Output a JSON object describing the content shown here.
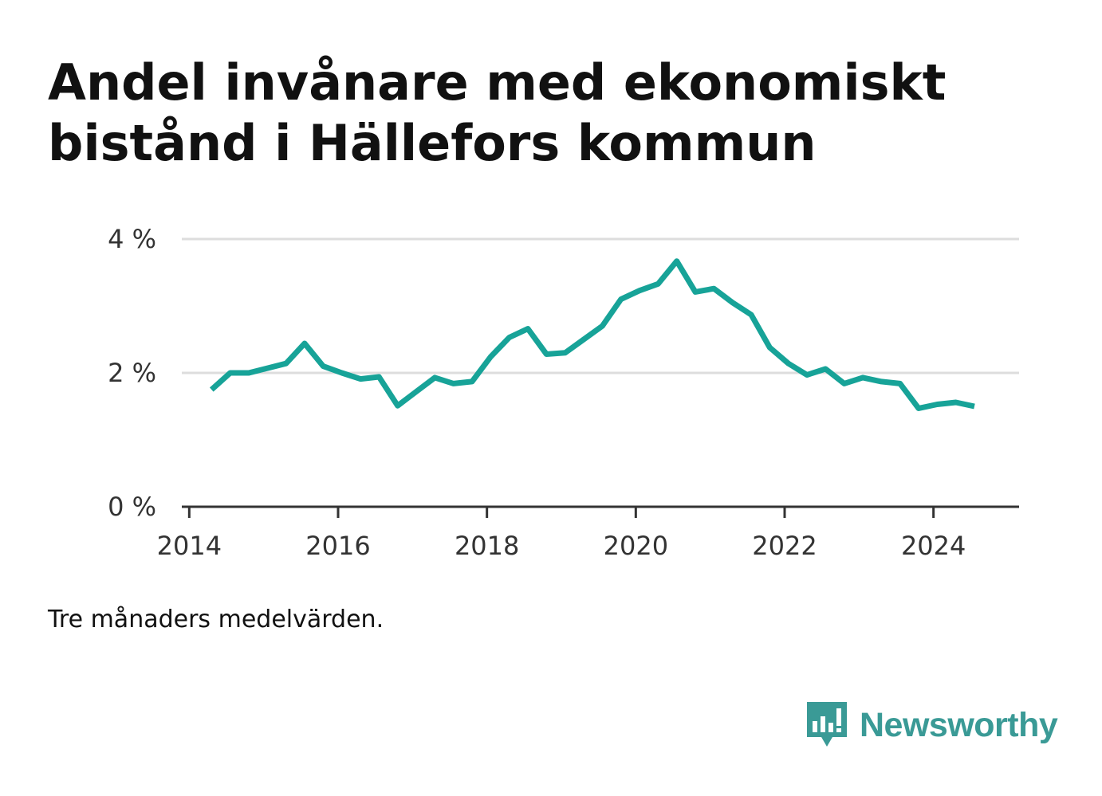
{
  "title": "Andel invånare med ekonomiskt bistånd i Hällefors kommun",
  "note": "Tre månaders medelvärden.",
  "brand": {
    "name": "Newsworthy",
    "icon": "bar-chart-speech-bubble-icon",
    "color": "#3a9a96"
  },
  "chart_data": {
    "type": "line",
    "title": "Andel invånare med ekonomiskt bistånd i Hällefors kommun",
    "xlabel": "",
    "ylabel": "",
    "xlim": [
      2013.9,
      2025.15
    ],
    "ylim": [
      0,
      4
    ],
    "grid": true,
    "legend": "none",
    "x_ticks": [
      {
        "value": 2014,
        "label": "2014"
      },
      {
        "value": 2016,
        "label": "2016"
      },
      {
        "value": 2018,
        "label": "2018"
      },
      {
        "value": 2020,
        "label": "2020"
      },
      {
        "value": 2022,
        "label": "2022"
      },
      {
        "value": 2024,
        "label": "2024"
      }
    ],
    "y_ticks": [
      {
        "value": 0,
        "label": "0 %"
      },
      {
        "value": 2,
        "label": "2 %"
      },
      {
        "value": 4,
        "label": "4 %"
      }
    ],
    "series": [
      {
        "color": "#17a398",
        "x": [
          2014.3,
          2014.55,
          2014.8,
          2015.05,
          2015.3,
          2015.55,
          2015.8,
          2016.05,
          2016.3,
          2016.55,
          2016.8,
          2017.05,
          2017.3,
          2017.55,
          2017.8,
          2018.05,
          2018.3,
          2018.55,
          2018.8,
          2019.05,
          2019.3,
          2019.55,
          2019.8,
          2020.05,
          2020.3,
          2020.55,
          2020.8,
          2021.05,
          2021.3,
          2021.55,
          2021.8,
          2022.05,
          2022.3,
          2022.55,
          2022.8,
          2023.05,
          2023.3,
          2023.55,
          2023.8,
          2024.05,
          2024.3,
          2024.55
        ],
        "y": [
          1.75,
          2.0,
          2.0,
          2.07,
          2.14,
          2.44,
          2.1,
          2.0,
          1.91,
          1.94,
          1.51,
          1.72,
          1.93,
          1.84,
          1.87,
          2.24,
          2.53,
          2.66,
          2.28,
          2.3,
          2.5,
          2.7,
          3.1,
          3.23,
          3.33,
          3.67,
          3.21,
          3.26,
          3.05,
          2.87,
          2.38,
          2.14,
          1.97,
          2.06,
          1.84,
          1.93,
          1.87,
          1.84,
          1.47,
          1.53,
          1.56,
          1.5
        ]
      }
    ]
  }
}
